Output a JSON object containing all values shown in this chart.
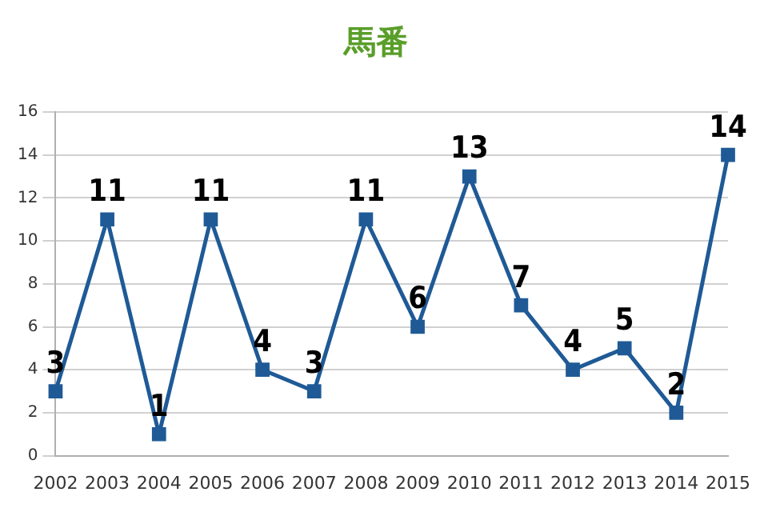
{
  "chart_data": {
    "type": "line",
    "title": "馬番",
    "categories": [
      "2002",
      "2003",
      "2004",
      "2005",
      "2006",
      "2007",
      "2008",
      "2009",
      "2010",
      "2011",
      "2012",
      "2013",
      "2014",
      "2015"
    ],
    "series": [
      {
        "color": "#1f5a96",
        "values": [
          3,
          11,
          1,
          11,
          4,
          3,
          11,
          6,
          13,
          7,
          4,
          5,
          2,
          14
        ]
      }
    ],
    "ylim": [
      0,
      16
    ],
    "yticks": [
      0,
      2,
      4,
      6,
      8,
      10,
      12,
      14,
      16
    ],
    "grid": "y",
    "marker": "square",
    "line_style": "solid",
    "data_labels": true,
    "legend": false
  }
}
